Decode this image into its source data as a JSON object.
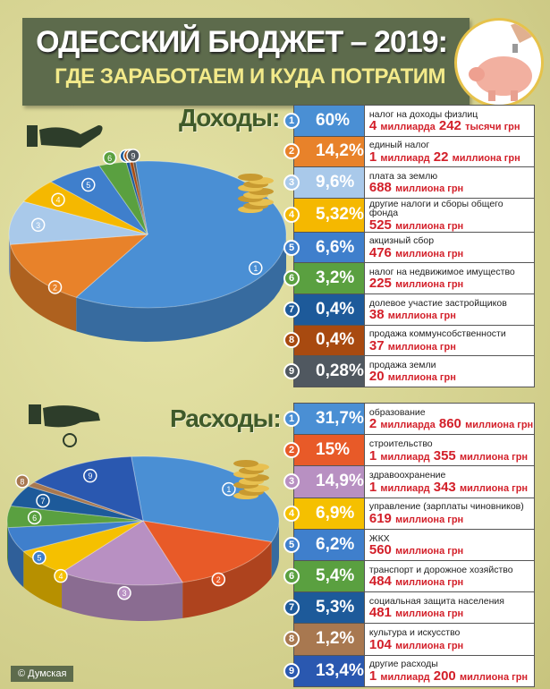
{
  "header": {
    "title": "ОДЕССКИЙ БЮДЖЕТ – 2019:",
    "subtitle": "ГДЕ ЗАРАБОТАЕМ И КУДА ПОТРАТИМ"
  },
  "credit": "© Думская",
  "chart_data": [
    {
      "type": "pie",
      "title": "Доходы:",
      "categories": [
        "налог на доходы физлиц",
        "единый налог",
        "плата за землю",
        "другие налоги и сборы общего фонда",
        "акцизный сбор",
        "налог на недвижимое имущество",
        "долевое участие  застройщиков",
        "продажа коммунсобственности",
        "продажа земли"
      ],
      "values": [
        60,
        14.2,
        9.6,
        5.32,
        6.6,
        3.2,
        0.4,
        0.4,
        0.28
      ],
      "labels": [
        "60%",
        "14,2%",
        "9,6%",
        "5,32%",
        "6,6%",
        "3,2%",
        "0,4%",
        "0,4%",
        "0,28%"
      ],
      "amounts": [
        [
          "4",
          "миллиарда",
          "242",
          "тысячи грн"
        ],
        [
          "1",
          "миллиард",
          "22",
          "миллиона грн"
        ],
        [
          "688",
          "миллиона грн",
          "",
          ""
        ],
        [
          "525",
          "миллиона грн",
          "",
          ""
        ],
        [
          "476",
          "миллиона грн",
          "",
          ""
        ],
        [
          "225",
          "миллиона грн",
          "",
          ""
        ],
        [
          "38",
          "миллиона грн",
          "",
          ""
        ],
        [
          "37",
          "миллиона грн",
          "",
          ""
        ],
        [
          "20",
          "миллиона грн",
          "",
          ""
        ]
      ],
      "colors": [
        "#4a8fd4",
        "#e8822a",
        "#a9c9ea",
        "#f5b800",
        "#3f7fcc",
        "#5aa040",
        "#1d5a9a",
        "#a84a10",
        "#505860"
      ]
    },
    {
      "type": "pie",
      "title": "Расходы:",
      "categories": [
        "образование",
        "строительство",
        "здравоохранение",
        "управление (зарплаты чиновников)",
        "ЖКХ",
        "транспорт и дорожное хозяйство",
        "социальная защита населения",
        "культура и искусство",
        "другие расходы"
      ],
      "values": [
        31.7,
        15,
        14.9,
        6.9,
        6.2,
        5.4,
        5.3,
        1.2,
        13.4
      ],
      "labels": [
        "31,7%",
        "15%",
        "14,9%",
        "6,9%",
        "6,2%",
        "5,4%",
        "5,3%",
        "1,2%",
        "13,4%"
      ],
      "amounts": [
        [
          "2",
          "миллиарда",
          "860",
          "миллиона грн"
        ],
        [
          "1",
          "миллиард",
          "355",
          "миллиона грн"
        ],
        [
          "1",
          "миллиард",
          "343",
          "миллиона грн"
        ],
        [
          "619",
          "миллиона грн",
          "",
          ""
        ],
        [
          "560",
          "миллиона грн",
          "",
          ""
        ],
        [
          "484",
          "миллиона грн",
          "",
          ""
        ],
        [
          "481",
          "миллиона грн",
          "",
          ""
        ],
        [
          "104",
          "миллиона грн",
          "",
          ""
        ],
        [
          "1",
          "миллиард",
          "200",
          "миллиона грн"
        ]
      ],
      "colors": [
        "#4a8fd4",
        "#e85a28",
        "#b890c2",
        "#f5c000",
        "#3f7fcc",
        "#5aa040",
        "#1d5a9a",
        "#a87850",
        "#2a58b0"
      ]
    }
  ]
}
